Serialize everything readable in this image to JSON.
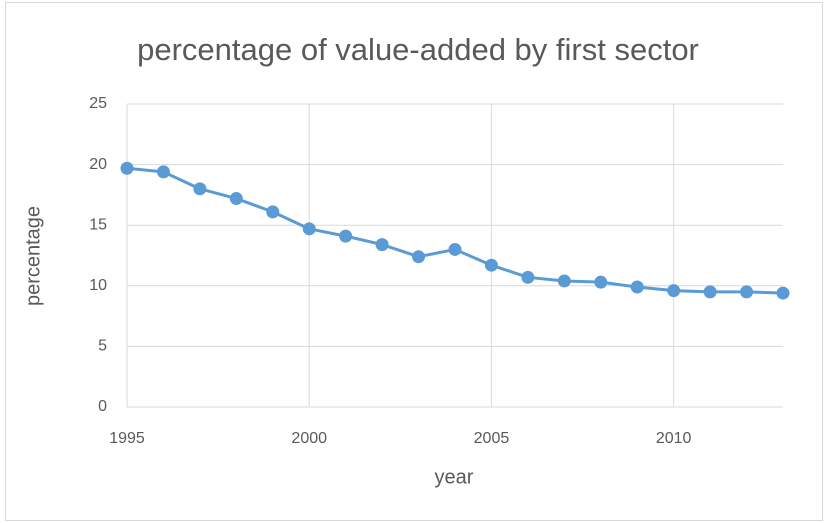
{
  "chart_data": {
    "type": "line",
    "title": "percentage of value-added by first sector",
    "x_label": "year",
    "y_label": "percentage",
    "x": [
      1995,
      1996,
      1997,
      1998,
      1999,
      2000,
      2001,
      2002,
      2003,
      2004,
      2005,
      2006,
      2007,
      2008,
      2009,
      2010,
      2011,
      2012,
      2013
    ],
    "series": [
      {
        "name": "percentage",
        "color": "#5b9bd5",
        "values": [
          19.7,
          19.4,
          18.0,
          17.2,
          16.1,
          14.7,
          14.1,
          13.4,
          12.4,
          13.0,
          11.7,
          10.7,
          10.4,
          10.3,
          9.9,
          9.6,
          9.5,
          9.5,
          9.4
        ]
      }
    ],
    "xlim": [
      1995,
      2013
    ],
    "xticks": [
      1995,
      2000,
      2005,
      2010
    ],
    "ylim": [
      0,
      25
    ],
    "yticks": [
      0,
      5,
      10,
      15,
      20,
      25
    ],
    "grid": true,
    "legend": false
  }
}
